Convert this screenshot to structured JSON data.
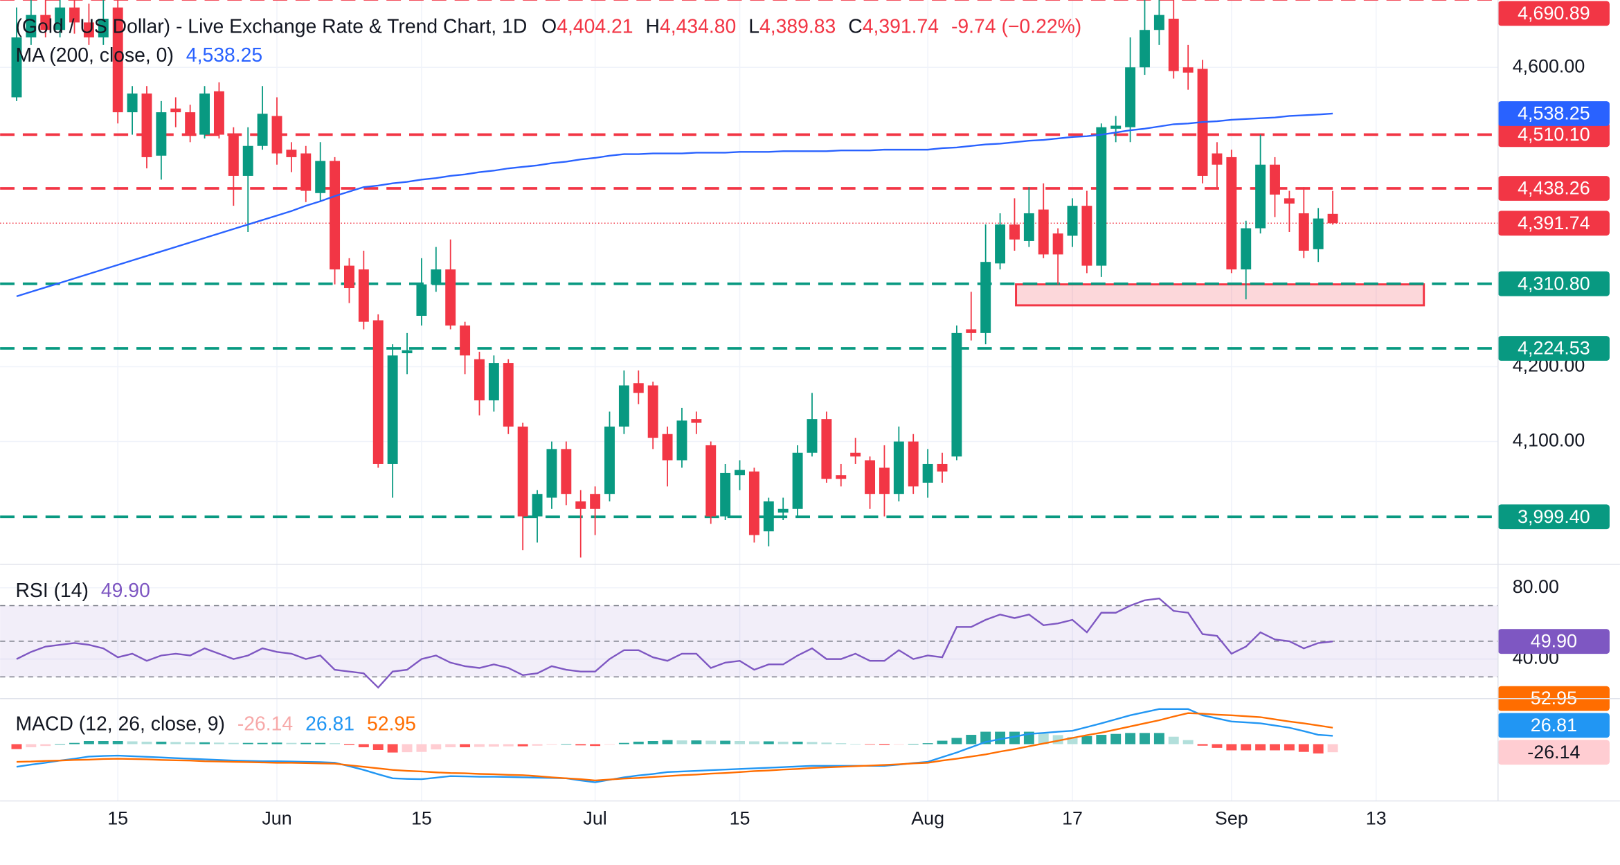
{
  "header": {
    "title": "(Gold / US Dollar) - Live Exchange Rate & Trend Chart, 1D",
    "ohlc": [
      {
        "key": "O",
        "value": "4,404.21"
      },
      {
        "key": "H",
        "value": "4,434.80"
      },
      {
        "key": "L",
        "value": "4,389.83"
      },
      {
        "key": "C",
        "value": "4,391.74"
      }
    ],
    "change": "-9.74 (−0.22%)"
  },
  "chart_data": [
    {
      "type": "candlestick",
      "up_color": "#089981",
      "down_color": "#f23645",
      "xlim": [
        -1.142857,
        102.428571
      ],
      "xticks": [
        {
          "value": 7,
          "label": "15"
        },
        {
          "value": 18,
          "label": "Jun"
        },
        {
          "value": 28,
          "label": "15"
        },
        {
          "value": 40,
          "label": "Jul"
        },
        {
          "value": 50,
          "label": "15"
        },
        {
          "value": 63,
          "label": "Aug"
        },
        {
          "value": 73,
          "label": "17"
        },
        {
          "value": 84,
          "label": "Sep"
        },
        {
          "value": 94,
          "label": "13"
        }
      ],
      "ylim": [
        3936,
        4690
      ],
      "yticks": [
        {
          "value": 4100,
          "label": "4,100.00"
        },
        {
          "value": 4200,
          "label": "4,200.00"
        },
        {
          "value": 4600,
          "label": "4,600.00"
        }
      ],
      "grid": true,
      "open": [
        4560,
        4640,
        4670,
        4650,
        4680,
        4660,
        4640,
        4680,
        4540,
        4565,
        4482,
        4545,
        4540,
        4510,
        4568,
        4510,
        4455,
        4495,
        4535,
        4490,
        4485,
        4432,
        4475,
        4335,
        4330,
        4262,
        4070,
        4218,
        4268,
        4310,
        4330,
        4255,
        4210,
        4155,
        4205,
        4120,
        4000,
        4025,
        4090,
        4020,
        4030,
        4030,
        4120,
        4178,
        4175,
        4110,
        4075,
        4130,
        4095,
        4000,
        4055,
        4060,
        3980,
        4005,
        4010,
        4085,
        4130,
        4055,
        4085,
        4075,
        4065,
        4030,
        4100,
        4045,
        4070,
        4080,
        4250,
        4245,
        4338,
        4390,
        4368,
        4410,
        4378,
        4375,
        4415,
        4335,
        4518,
        4520,
        4600,
        4650,
        4665,
        4600,
        4598,
        4485,
        4480,
        4330,
        4385,
        4470,
        4425,
        4405,
        4357,
        4404.21
      ],
      "high": [
        4680,
        4690,
        4690,
        4690,
        4690,
        4685,
        4690,
        4690,
        4575,
        4575,
        4555,
        4560,
        4550,
        4575,
        4580,
        4520,
        4520,
        4575,
        4560,
        4500,
        4495,
        4500,
        4480,
        4345,
        4355,
        4270,
        4230,
        4245,
        4345,
        4360,
        4370,
        4260,
        4220,
        4215,
        4210,
        4125,
        4035,
        4100,
        4100,
        4035,
        4040,
        4140,
        4195,
        4195,
        4180,
        4120,
        4145,
        4140,
        4100,
        4070,
        4075,
        4065,
        4025,
        4025,
        4095,
        4165,
        4140,
        4070,
        4105,
        4080,
        4095,
        4120,
        4110,
        4090,
        4085,
        4255,
        4300,
        4390,
        4405,
        4425,
        4440,
        4445,
        4385,
        4425,
        4435,
        4525,
        4535,
        4640,
        4690,
        4690,
        4690,
        4630,
        4610,
        4500,
        4490,
        4395,
        4510,
        4480,
        4435,
        4440,
        4412,
        4434.8
      ],
      "low": [
        4555,
        4630,
        4640,
        4640,
        4645,
        4630,
        4630,
        4525,
        4510,
        4465,
        4450,
        4520,
        4500,
        4505,
        4505,
        4415,
        4380,
        4490,
        4470,
        4460,
        4420,
        4420,
        4310,
        4285,
        4250,
        4065,
        4025,
        4190,
        4255,
        4300,
        4250,
        4190,
        4135,
        4140,
        4110,
        3955,
        3965,
        4010,
        4015,
        3945,
        3975,
        4020,
        4110,
        4150,
        4090,
        4040,
        4065,
        4110,
        3990,
        3995,
        4035,
        3965,
        3960,
        3995,
        4000,
        4080,
        4045,
        4040,
        4070,
        4010,
        4000,
        4020,
        4030,
        4025,
        4045,
        4075,
        4235,
        4230,
        4330,
        4355,
        4360,
        4345,
        4310,
        4360,
        4325,
        4320,
        4500,
        4500,
        4590,
        4630,
        4585,
        4570,
        4445,
        4440,
        4325,
        4290,
        4378,
        4400,
        4380,
        4345,
        4340,
        4389.83
      ],
      "close": [
        4640,
        4670,
        4650,
        4680,
        4660,
        4640,
        4665,
        4540,
        4565,
        4480,
        4540,
        4540,
        4510,
        4565,
        4510,
        4455,
        4495,
        4538,
        4485,
        4480,
        4435,
        4475,
        4330,
        4305,
        4260,
        4070,
        4215,
        4222,
        4310,
        4330,
        4255,
        4215,
        4155,
        4205,
        4120,
        4000,
        4030,
        4090,
        4030,
        4010,
        4010,
        4120,
        4175,
        4165,
        4105,
        4075,
        4128,
        4125,
        4000,
        4058,
        4062,
        3975,
        4020,
        4010,
        4085,
        4130,
        4050,
        4050,
        4080,
        4030,
        4030,
        4100,
        4040,
        4070,
        4060,
        4245,
        4245,
        4340,
        4390,
        4370,
        4405,
        4350,
        4350,
        4415,
        4335,
        4520,
        4522,
        4600,
        4650,
        4670,
        4595,
        4593,
        4455,
        4470,
        4330,
        4385,
        4470,
        4430,
        4418,
        4355,
        4398,
        4391.74
      ],
      "ma": {
        "name": "MA (200, close, 0)",
        "color": "#2962ff",
        "value_label": "4,538.25",
        "values": [
          4294,
          4300,
          4306,
          4312,
          4318,
          4324,
          4330,
          4336,
          4342,
          4348,
          4354,
          4360,
          4366,
          4372,
          4378,
          4384,
          4390,
          4396,
          4402,
          4408,
          4415,
          4421,
          4428,
          4434,
          4440,
          4442,
          4445,
          4447,
          4450,
          4452,
          4455,
          4457,
          4460,
          4462,
          4465,
          4467,
          4469,
          4472,
          4474,
          4477,
          4479,
          4482,
          4484,
          4484,
          4485,
          4485,
          4485,
          4486,
          4486,
          4486,
          4487,
          4487,
          4487,
          4488,
          4488,
          4488,
          4488,
          4489,
          4489,
          4489,
          4490,
          4490,
          4490,
          4490,
          4492,
          4493,
          4495,
          4497,
          4498,
          4500,
          4502,
          4503,
          4505,
          4507,
          4508,
          4510,
          4513,
          4516,
          4518,
          4521,
          4524,
          4525,
          4527,
          4528,
          4530,
          4531,
          4532,
          4533,
          4535,
          4536,
          4537,
          4538.25
        ]
      },
      "levels": [
        {
          "value": 4690.89,
          "label": "4,690.89",
          "color": "#f23645"
        },
        {
          "value": 4510.1,
          "label": "4,510.10",
          "color": "#f23645"
        },
        {
          "value": 4438.26,
          "label": "4,438.26",
          "color": "#f23645"
        },
        {
          "value": 4310.8,
          "label": "4,310.80",
          "color": "#089981"
        },
        {
          "value": 4224.53,
          "label": "4,224.53",
          "color": "#089981"
        },
        {
          "value": 3999.4,
          "label": "3,999.40",
          "color": "#089981"
        }
      ],
      "last_price": {
        "value": 4391.74,
        "label": "4,391.74",
        "color": "#f23645"
      },
      "zone": {
        "ylim": [
          4282,
          4310
        ],
        "xlim": [
          69.1,
          97.3
        ],
        "color": "#f23645"
      }
    },
    {
      "type": "rsi",
      "title": "RSI (14)",
      "ylim": [
        17.8,
        93.2
      ],
      "yticks": [
        {
          "value": 80,
          "label": "80.00"
        },
        {
          "value": 40,
          "label": "40.00"
        }
      ],
      "bands": [
        30,
        70
      ],
      "midline": 50,
      "rsi": {
        "color": "#7e57c2",
        "value_label": "49.90",
        "values": [
          40,
          44,
          47,
          48,
          49,
          48,
          46,
          41,
          43,
          39,
          42,
          43,
          42,
          46,
          43,
          40,
          42,
          46,
          44,
          43,
          40,
          42,
          34,
          33,
          32,
          24,
          33,
          34,
          40,
          42,
          38,
          36,
          35,
          37,
          35,
          31,
          32,
          36,
          34,
          33,
          33,
          40,
          45,
          45,
          41,
          39,
          43,
          43,
          35,
          38,
          39,
          34,
          37,
          37,
          42,
          46,
          40,
          40,
          43,
          39,
          39,
          45,
          40,
          42,
          41,
          58,
          58,
          62,
          65,
          63,
          65,
          59,
          60,
          62,
          55,
          66,
          66,
          70,
          73,
          74,
          67,
          66,
          54,
          53,
          43,
          47,
          55,
          51,
          50,
          46,
          49,
          49.9
        ]
      }
    },
    {
      "type": "macd",
      "title": "MACD (12, 26, close, 9)",
      "ylim": [
        -183,
        146.7
      ],
      "histogram": {
        "colors": [
          "#26a69a",
          "#b2dfdb",
          "#ffcdd2",
          "#ff5252"
        ],
        "value_label": "-26.14",
        "label_color": "#ffcdd2",
        "values": [
          -16,
          -10,
          -6,
          0,
          4,
          10,
          10,
          10,
          9,
          8,
          8,
          7,
          6,
          6,
          5,
          4,
          4,
          4,
          5,
          4,
          4,
          4,
          3,
          -3,
          -10,
          -19,
          -27,
          -26,
          -25,
          -17,
          -10,
          -10,
          -9,
          -8,
          -7,
          -7,
          -5,
          -2,
          0,
          -4,
          -6,
          -1,
          4,
          8,
          10,
          13,
          12,
          12,
          11,
          11,
          10,
          9,
          9,
          8,
          8,
          7,
          5,
          3,
          1,
          -1,
          -3,
          -1,
          1,
          3,
          11,
          20,
          30,
          40,
          40,
          40,
          40,
          34,
          29,
          23,
          26,
          30,
          33,
          36,
          36,
          36,
          24,
          13,
          -5,
          -12,
          -20,
          -20,
          -20,
          -20,
          -20,
          -25,
          -30,
          -26.14
        ]
      },
      "macd": {
        "color": "#2196f3",
        "value_label": "26.81",
        "values": [
          -73,
          -66,
          -60,
          -53,
          -47,
          -40,
          -38,
          -37,
          -39,
          -41,
          -43,
          -45,
          -47,
          -49,
          -51,
          -53,
          -54,
          -55,
          -55,
          -56,
          -57,
          -58,
          -60,
          -71,
          -83,
          -97,
          -110,
          -112,
          -113,
          -108,
          -103,
          -104,
          -105,
          -105,
          -106,
          -107,
          -108,
          -109,
          -110,
          -117,
          -123,
          -115,
          -107,
          -101,
          -96,
          -90,
          -88,
          -86,
          -84,
          -82,
          -80,
          -78,
          -76,
          -74,
          -72,
          -70,
          -70,
          -70,
          -70,
          -70,
          -70,
          -66,
          -61,
          -57,
          -42,
          -27,
          -10,
          7,
          16,
          24,
          33,
          36,
          40,
          43,
          55,
          67,
          80,
          93,
          103,
          113,
          113,
          113,
          93,
          83,
          73,
          70,
          67,
          60,
          53,
          42,
          30,
          26.81
        ]
      },
      "signal": {
        "color": "#ff6d00",
        "value_label": "52.95",
        "values": [
          -57,
          -56,
          -54,
          -53,
          -51,
          -50,
          -48,
          -47,
          -48,
          -49,
          -51,
          -52,
          -53,
          -55,
          -56,
          -57,
          -58,
          -59,
          -60,
          -60,
          -61,
          -62,
          -63,
          -68,
          -73,
          -78,
          -83,
          -86,
          -88,
          -91,
          -93,
          -94,
          -96,
          -97,
          -99,
          -100,
          -103,
          -107,
          -110,
          -113,
          -117,
          -114,
          -111,
          -109,
          -106,
          -103,
          -100,
          -98,
          -95,
          -93,
          -90,
          -87,
          -85,
          -82,
          -80,
          -77,
          -75,
          -73,
          -71,
          -69,
          -67,
          -65,
          -62,
          -60,
          -53,
          -47,
          -40,
          -33,
          -24,
          -16,
          -7,
          2,
          11,
          20,
          29,
          37,
          47,
          57,
          67,
          77,
          89,
          100,
          98,
          95,
          93,
          90,
          87,
          80,
          73,
          67,
          60,
          52.95
        ]
      }
    }
  ]
}
